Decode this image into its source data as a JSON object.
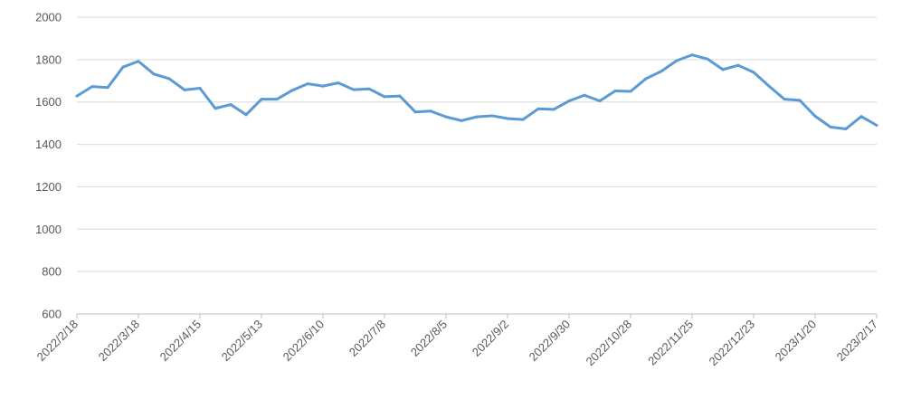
{
  "chart_data": {
    "type": "line",
    "title": "",
    "xlabel": "",
    "ylabel": "",
    "ylim": [
      600,
      2000
    ],
    "yticks": [
      600,
      800,
      1000,
      1200,
      1400,
      1600,
      1800,
      2000
    ],
    "grid": true,
    "legend": "none",
    "line_color": "#5b9bd5",
    "x_tick_labels": [
      "2022/2/18",
      "2022/3/18",
      "2022/4/15",
      "2022/5/13",
      "2022/6/10",
      "2022/7/8",
      "2022/8/5",
      "2022/9/2",
      "2022/9/30",
      "2022/10/28",
      "2022/11/25",
      "2022/12/23",
      "2023/1/20",
      "2023/2/17"
    ],
    "series": [
      {
        "values": [
          1628,
          1673,
          1668,
          1765,
          1792,
          1732,
          1710,
          1657,
          1665,
          1570,
          1588,
          1540,
          1613,
          1613,
          1655,
          1686,
          1675,
          1690,
          1658,
          1662,
          1625,
          1628,
          1553,
          1557,
          1530,
          1512,
          1530,
          1535,
          1522,
          1517,
          1568,
          1565,
          1605,
          1632,
          1605,
          1652,
          1650,
          1710,
          1745,
          1795,
          1822,
          1803,
          1753,
          1773,
          1740,
          1675,
          1613,
          1608,
          1533,
          1482,
          1473,
          1532,
          1490
        ]
      }
    ]
  }
}
